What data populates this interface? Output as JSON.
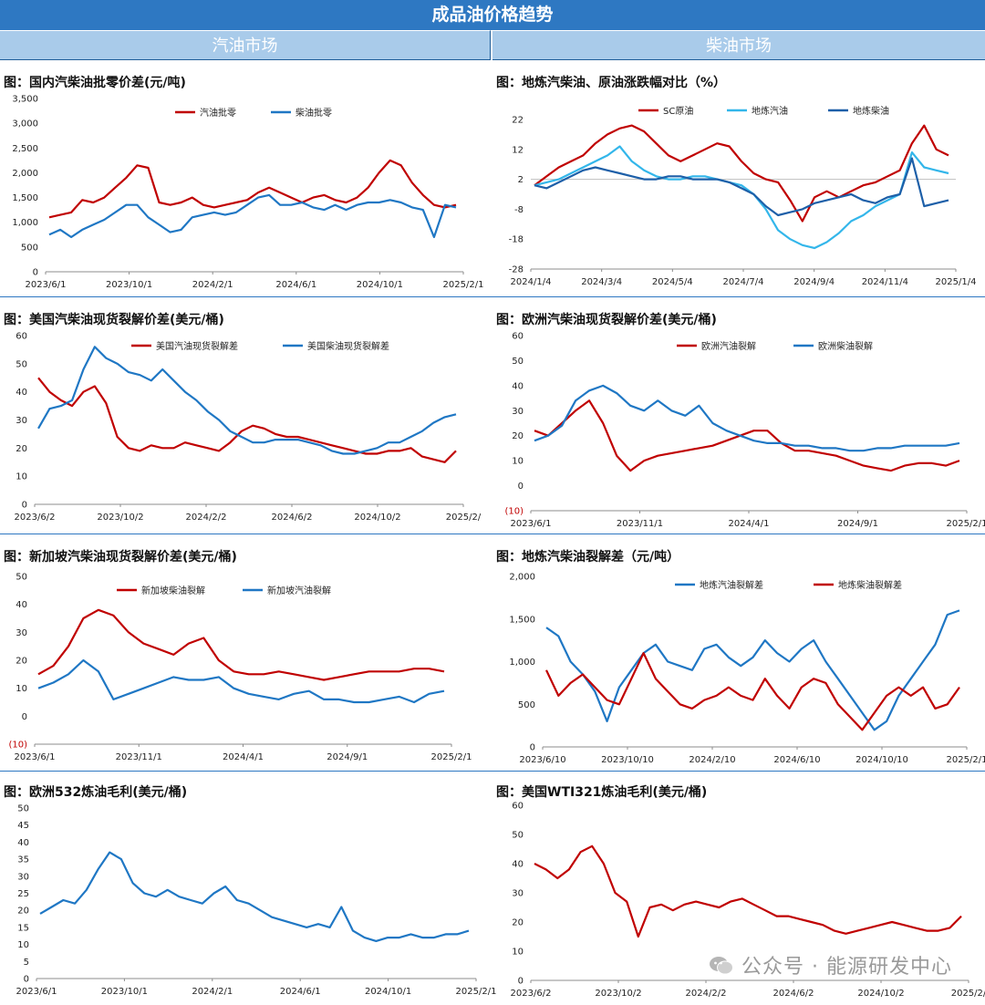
{
  "page_title": "成品油价格趋势",
  "sections": {
    "left": "汽油市场",
    "right": "柴油市场"
  },
  "watermark": "公众号 · 能源研发中心",
  "colors": {
    "red": "#c00000",
    "blue": "#1f77c4",
    "light_blue": "#33b6ea",
    "dark_blue": "#1d5fa8"
  },
  "chart_data": [
    {
      "id": "c1",
      "type": "line",
      "title": "图：国内汽柴油批零价差(元/吨)",
      "ylim": [
        0,
        3500
      ],
      "yticks": [
        "3,500",
        "3,000",
        "2,500",
        "2,000",
        "1,500",
        "1,000",
        "500",
        "0"
      ],
      "xticks": [
        "2023/6/1",
        "2023/10/1",
        "2024/2/1",
        "2024/6/1",
        "2024/10/1",
        "2025/2/1"
      ],
      "series": [
        {
          "name": "汽油批零",
          "color": "#c00000",
          "values": [
            1100,
            1150,
            1200,
            1450,
            1400,
            1500,
            1700,
            1900,
            2150,
            2100,
            1400,
            1350,
            1400,
            1500,
            1350,
            1300,
            1350,
            1400,
            1450,
            1600,
            1700,
            1600,
            1500,
            1400,
            1500,
            1550,
            1450,
            1400,
            1500,
            1700,
            2000,
            2250,
            2150,
            1800,
            1550,
            1350,
            1300,
            1350
          ]
        },
        {
          "name": "柴油批零",
          "color": "#1f77c4",
          "values": [
            750,
            850,
            700,
            850,
            950,
            1050,
            1200,
            1350,
            1350,
            1100,
            950,
            800,
            850,
            1100,
            1150,
            1200,
            1150,
            1200,
            1350,
            1500,
            1550,
            1350,
            1350,
            1400,
            1300,
            1250,
            1350,
            1250,
            1350,
            1400,
            1400,
            1450,
            1400,
            1300,
            1250,
            700,
            1350,
            1300
          ]
        }
      ]
    },
    {
      "id": "c2",
      "type": "line",
      "title": "图：地炼汽柴油、原油涨跌幅对比（%）",
      "ylim": [
        -28,
        22
      ],
      "yticks": [
        "22",
        "12",
        "2",
        "-8",
        "-18",
        "-28"
      ],
      "xticks": [
        "2024/1/4",
        "2024/3/4",
        "2024/5/4",
        "2024/7/4",
        "2024/9/4",
        "2024/11/4",
        "2025/1/4"
      ],
      "series": [
        {
          "name": "SC原油",
          "color": "#c00000",
          "values": [
            0,
            3,
            6,
            8,
            10,
            14,
            17,
            19,
            20,
            18,
            14,
            10,
            8,
            10,
            12,
            14,
            13,
            8,
            4,
            2,
            1,
            -5,
            -12,
            -4,
            -2,
            -4,
            -2,
            0,
            1,
            3,
            5,
            14,
            20,
            12,
            10
          ]
        },
        {
          "name": "地炼汽油",
          "color": "#33b6ea",
          "values": [
            0,
            1,
            2,
            4,
            6,
            8,
            10,
            13,
            8,
            5,
            3,
            2,
            2,
            3,
            3,
            2,
            1,
            0,
            -3,
            -8,
            -15,
            -18,
            -20,
            -21,
            -19,
            -16,
            -12,
            -10,
            -7,
            -5,
            -3,
            11,
            6,
            5,
            4
          ]
        },
        {
          "name": "地炼柴油",
          "color": "#1d5fa8",
          "values": [
            0,
            -1,
            1,
            3,
            5,
            6,
            5,
            4,
            3,
            2,
            2,
            3,
            3,
            2,
            2,
            2,
            1,
            -1,
            -3,
            -7,
            -10,
            -9,
            -8,
            -6,
            -5,
            -4,
            -3,
            -5,
            -6,
            -4,
            -3,
            9,
            -7,
            -6,
            -5
          ]
        }
      ]
    },
    {
      "id": "c3",
      "type": "line",
      "title": "图：美国汽柴油现货裂解价差(美元/桶)",
      "ylim": [
        0,
        60
      ],
      "yticks": [
        "60",
        "50",
        "40",
        "30",
        "20",
        "10",
        "0"
      ],
      "xticks": [
        "2023/6/2",
        "2023/10/2",
        "2024/2/2",
        "2024/6/2",
        "2024/10/2",
        "2025/2/"
      ],
      "series": [
        {
          "name": "美国汽油现货裂解差",
          "color": "#c00000",
          "values": [
            45,
            40,
            37,
            35,
            40,
            42,
            36,
            24,
            20,
            19,
            21,
            20,
            20,
            22,
            21,
            20,
            19,
            22,
            26,
            28,
            27,
            25,
            24,
            24,
            23,
            22,
            21,
            20,
            19,
            18,
            18,
            19,
            19,
            20,
            17,
            16,
            15,
            19
          ]
        },
        {
          "name": "美国柴油现货裂解差",
          "color": "#1f77c4",
          "values": [
            27,
            34,
            35,
            37,
            48,
            56,
            52,
            50,
            47,
            46,
            44,
            48,
            44,
            40,
            37,
            33,
            30,
            26,
            24,
            22,
            22,
            23,
            23,
            23,
            22,
            21,
            19,
            18,
            18,
            19,
            20,
            22,
            22,
            24,
            26,
            29,
            31,
            32
          ]
        }
      ]
    },
    {
      "id": "c4",
      "type": "line",
      "title": "图：欧洲汽柴油现货裂解价差(美元/桶)",
      "ylim": [
        -10,
        60
      ],
      "yticks": [
        "60",
        "50",
        "40",
        "30",
        "20",
        "10",
        "0",
        "(10)"
      ],
      "xticks": [
        "2023/6/1",
        "2023/11/1",
        "2024/4/1",
        "2024/9/1",
        "2025/2/1"
      ],
      "series": [
        {
          "name": "欧洲汽油裂解",
          "color": "#c00000",
          "values": [
            22,
            20,
            25,
            30,
            34,
            25,
            12,
            6,
            10,
            12,
            13,
            14,
            15,
            16,
            18,
            20,
            22,
            22,
            17,
            14,
            14,
            13,
            12,
            10,
            8,
            7,
            6,
            8,
            9,
            9,
            8,
            10
          ]
        },
        {
          "name": "欧洲柴油裂解",
          "color": "#1f77c4",
          "values": [
            18,
            20,
            24,
            34,
            38,
            40,
            37,
            32,
            30,
            34,
            30,
            28,
            32,
            25,
            22,
            20,
            18,
            17,
            17,
            16,
            16,
            15,
            15,
            14,
            14,
            15,
            15,
            16,
            16,
            16,
            16,
            17
          ]
        }
      ]
    },
    {
      "id": "c5",
      "type": "line",
      "title": "图：新加坡汽柴油现货裂解价差(美元/桶)",
      "ylim": [
        -10,
        50
      ],
      "yticks": [
        "50",
        "40",
        "30",
        "20",
        "10",
        "0",
        "(10)"
      ],
      "xticks": [
        "2023/6/1",
        "2023/11/1",
        "2024/4/1",
        "2024/9/1",
        "2025/2/1"
      ],
      "series": [
        {
          "name": "新加坡柴油裂解",
          "color": "#c00000",
          "values": [
            15,
            18,
            25,
            35,
            38,
            36,
            30,
            26,
            24,
            22,
            26,
            28,
            20,
            16,
            15,
            15,
            16,
            15,
            14,
            13,
            14,
            15,
            16,
            16,
            16,
            17,
            17,
            16
          ]
        },
        {
          "name": "新加坡汽油裂解",
          "color": "#1f77c4",
          "values": [
            10,
            12,
            15,
            20,
            16,
            6,
            8,
            10,
            12,
            14,
            13,
            13,
            14,
            10,
            8,
            7,
            6,
            8,
            9,
            6,
            6,
            5,
            5,
            6,
            7,
            5,
            8,
            9
          ]
        }
      ]
    },
    {
      "id": "c6",
      "type": "line",
      "title": "图：地炼汽柴油裂解差（元/吨）",
      "ylim": [
        0,
        2000
      ],
      "yticks": [
        "2,000",
        "1,500",
        "1,000",
        "500",
        "0"
      ],
      "xticks": [
        "2023/6/10",
        "2023/10/10",
        "2024/2/10",
        "2024/6/10",
        "2024/10/10",
        "2025/2/1"
      ],
      "series": [
        {
          "name": "地炼汽油裂解差",
          "color": "#1f77c4",
          "values": [
            1400,
            1300,
            1000,
            850,
            650,
            300,
            700,
            900,
            1100,
            1200,
            1000,
            950,
            900,
            1150,
            1200,
            1050,
            950,
            1050,
            1250,
            1100,
            1000,
            1150,
            1250,
            1000,
            800,
            600,
            400,
            200,
            300,
            600,
            800,
            1000,
            1200,
            1550,
            1600
          ]
        },
        {
          "name": "地炼柴油裂解差",
          "color": "#c00000",
          "values": [
            900,
            600,
            750,
            850,
            700,
            550,
            500,
            800,
            1100,
            800,
            650,
            500,
            450,
            550,
            600,
            700,
            600,
            550,
            800,
            600,
            450,
            700,
            800,
            750,
            500,
            350,
            200,
            400,
            600,
            700,
            600,
            700,
            450,
            500,
            700
          ]
        }
      ]
    },
    {
      "id": "c7",
      "type": "line",
      "title": "图：欧洲532炼油毛利(美元/桶)",
      "ylim": [
        0,
        50
      ],
      "yticks": [
        "50",
        "45",
        "40",
        "35",
        "30",
        "25",
        "20",
        "15",
        "10",
        "5",
        "0"
      ],
      "xticks": [
        "2023/6/1",
        "2023/10/1",
        "2024/2/1",
        "2024/6/1",
        "2024/10/1",
        "2025/2/1"
      ],
      "series": [
        {
          "name": "欧洲532炼油毛利",
          "color": "#1f77c4",
          "values": [
            19,
            21,
            23,
            22,
            26,
            32,
            37,
            35,
            28,
            25,
            24,
            26,
            24,
            23,
            22,
            25,
            27,
            23,
            22,
            20,
            18,
            17,
            16,
            15,
            16,
            15,
            21,
            14,
            12,
            11,
            12,
            12,
            13,
            12,
            12,
            13,
            13,
            14
          ]
        }
      ]
    },
    {
      "id": "c8",
      "type": "line",
      "title": "图：美国WTI321炼油毛利(美元/桶)",
      "ylim": [
        0,
        60
      ],
      "yticks": [
        "60",
        "50",
        "40",
        "30",
        "20",
        "10",
        "0"
      ],
      "xticks": [
        "2023/6/2",
        "2023/10/2",
        "2024/2/2",
        "2024/6/2",
        "2024/10/2",
        "2025/2/"
      ],
      "series": [
        {
          "name": "美国WTI321炼油毛利",
          "color": "#c00000",
          "values": [
            40,
            38,
            35,
            38,
            44,
            46,
            40,
            30,
            27,
            15,
            25,
            26,
            24,
            26,
            27,
            26,
            25,
            27,
            28,
            26,
            24,
            22,
            22,
            21,
            20,
            19,
            17,
            16,
            17,
            18,
            19,
            20,
            19,
            18,
            17,
            17,
            18,
            22
          ]
        }
      ]
    }
  ]
}
